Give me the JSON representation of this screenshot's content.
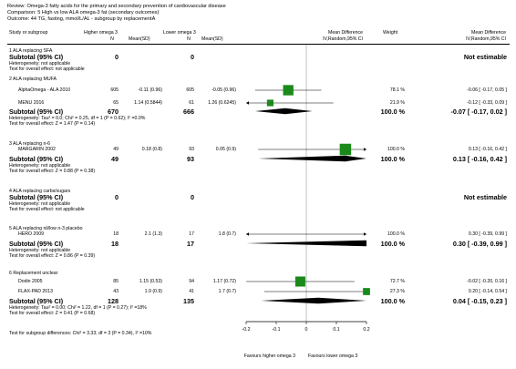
{
  "header": {
    "review": "Review:   Omega-3 fatty acids for the primary and secondary prevention of cardiovascular disease",
    "comparison": "Comparison:   5 High vs low ALA omega-3 fat (secondary outcomes)",
    "outcome": "Outcome:   44 TG, fasting, mmol/L/AL - subgroup by replacementA"
  },
  "columns": {
    "study": "Study or subgroup",
    "higher": "Higher omega 3",
    "lower": "Lower omega 3",
    "n": "N",
    "mean_sd": "Mean(SD)",
    "md_title": "Mean Difference",
    "md_method": "IV,Random,95% CI",
    "weight": "Weight"
  },
  "subgroups": [
    {
      "title": "1 ALA replacing SFA",
      "studies": [],
      "subtotal": {
        "label": "Subtotal (95% CI)",
        "n1": "0",
        "n2": "0",
        "weight": "",
        "ci": "Not estimable"
      },
      "heterogeneity": "Heterogeneity: not applicable",
      "overall": "Test for overall effect: not applicable"
    },
    {
      "title": "2 ALA replacing MUFA",
      "studies": [
        {
          "name": "AlphaOmega - ALA 2010",
          "n1": "605",
          "ms1": "-0.11 (0.96)",
          "n2": "605",
          "ms2": "-0.05 (0.96)",
          "weight": "78.1 %",
          "ci": "-0.06 [ -0.17, 0.05 ]"
        },
        {
          "name": "MENU 2016",
          "n1": "65",
          "ms1": "1.14 (0.5844)",
          "n2": "61",
          "ms2": "1.26 (0.6245)",
          "weight": "21.9 %",
          "ci": "-0.12 [ -0.33, 0.09 ]"
        }
      ],
      "subtotal": {
        "label": "Subtotal (95% CI)",
        "n1": "670",
        "n2": "666",
        "weight": "100.0 %",
        "ci": "-0.07 [ -0.17, 0.02 ]"
      },
      "heterogeneity": "Heterogeneity: Tau² = 0.0; Chi² = 0.25, df = 1 (P = 0.62); I² =0.0%",
      "overall": "Test for overall effect: Z = 1.47 (P = 0.14)"
    },
    {
      "title": "3 ALA replacing n-6",
      "studies": [
        {
          "name": "MARGARIN 2002",
          "n1": "49",
          "ms1": "0.18 (0.8)",
          "n2": "93",
          "ms2": "0.05 (0.9)",
          "weight": "100.0 %",
          "ci": "0.13 [ -0.16, 0.42 ]"
        }
      ],
      "subtotal": {
        "label": "Subtotal (95% CI)",
        "n1": "49",
        "n2": "93",
        "weight": "100.0 %",
        "ci": "0.13 [ -0.16, 0.42 ]"
      },
      "heterogeneity": "Heterogeneity: not applicable",
      "overall": "Test for overall effect: Z = 0.88 (P = 0.38)"
    },
    {
      "title": "4 ALA replacing carbs/sugars",
      "studies": [],
      "subtotal": {
        "label": "Subtotal (95% CI)",
        "n1": "0",
        "n2": "0",
        "weight": "",
        "ci": "Not estimable"
      },
      "heterogeneity": "Heterogeneity: not applicable",
      "overall": "Test for overall effect: not applicable"
    },
    {
      "title": "5 ALA replacing nil/low n-3 placebo",
      "studies": [
        {
          "name": "HERO 2009",
          "n1": "18",
          "ms1": "2.1 (1.3)",
          "n2": "17",
          "ms2": "1.8 (0.7)",
          "weight": "100.0 %",
          "ci": "0.30 [ -0.39, 0.99 ]"
        }
      ],
      "subtotal": {
        "label": "Subtotal (95% CI)",
        "n1": "18",
        "n2": "17",
        "weight": "100.0 %",
        "ci": "0.30 [ -0.39, 0.99 ]"
      },
      "heterogeneity": "Heterogeneity: not applicable",
      "overall": "Test for overall effect: Z = 0.86 (P = 0.39)"
    },
    {
      "title": "6 Replacement unclear",
      "studies": [
        {
          "name": "Dodin 2005",
          "n1": "85",
          "ms1": "1.15 (0.53)",
          "n2": "94",
          "ms2": "1.17 (0.72)",
          "weight": "72.7 %",
          "ci": "-0.02 [ -0.20, 0.16 ]"
        },
        {
          "name": "FLAX-PAD 2013",
          "n1": "43",
          "ms1": "1.9 (0.9)",
          "n2": "41",
          "ms2": "1.7 (0.7)",
          "weight": "27.3 %",
          "ci": "0.20 [ -0.14, 0.54 ]"
        }
      ],
      "subtotal": {
        "label": "Subtotal (95% CI)",
        "n1": "128",
        "n2": "135",
        "weight": "100.0 %",
        "ci": "0.04 [ -0.15, 0.23 ]"
      },
      "heterogeneity": "Heterogeneity: Tau² = 0.00; Chi² = 1.22, df = 1 (P = 0.27); I² =18%",
      "overall": "Test for overall effect: Z = 0.41 (P = 0.68)"
    }
  ],
  "footer": {
    "subgroup_diff": "Test for subgroup differences: Chi² = 3.33, df = 3 (P = 0.34), I² =10%",
    "favours_left": "Favours higher omega 3",
    "favours_right": "Favours lower omega 3"
  },
  "chart_data": {
    "type": "forest",
    "xlim": [
      -0.2,
      0.2
    ],
    "ticks": [
      "-0.2",
      "-0.1",
      "0",
      "0.1",
      "0.2"
    ],
    "tick_values": [
      -0.2,
      -0.1,
      0,
      0.1,
      0.2
    ],
    "points": [
      {
        "study": "AlphaOmega - ALA 2010",
        "md": -0.06,
        "lo": -0.17,
        "hi": 0.05,
        "weight": 78.1
      },
      {
        "study": "MENU 2016",
        "md": -0.12,
        "lo": -0.33,
        "hi": 0.09,
        "weight": 21.9
      },
      {
        "study": "MARGARIN 2002",
        "md": 0.13,
        "lo": -0.16,
        "hi": 0.42,
        "weight": 100.0
      },
      {
        "study": "HERO 2009",
        "md": 0.3,
        "lo": -0.39,
        "hi": 0.99,
        "weight": 100.0
      },
      {
        "study": "Dodin 2005",
        "md": -0.02,
        "lo": -0.2,
        "hi": 0.16,
        "weight": 72.7
      },
      {
        "study": "FLAX-PAD 2013",
        "md": 0.2,
        "lo": -0.14,
        "hi": 0.54,
        "weight": 27.3
      }
    ],
    "diamonds": [
      {
        "subgroup": "2 ALA replacing MUFA",
        "md": -0.07,
        "lo": -0.17,
        "hi": 0.02
      },
      {
        "subgroup": "3 ALA replacing n-6",
        "md": 0.13,
        "lo": -0.16,
        "hi": 0.42
      },
      {
        "subgroup": "5 ALA replacing nil/low n-3 placebo",
        "md": 0.3,
        "lo": -0.39,
        "hi": 0.99
      },
      {
        "subgroup": "6 Replacement unclear",
        "md": 0.04,
        "lo": -0.15,
        "hi": 0.23
      }
    ],
    "marker_color": "#1a8a1a",
    "diamond_color": "#000000"
  }
}
